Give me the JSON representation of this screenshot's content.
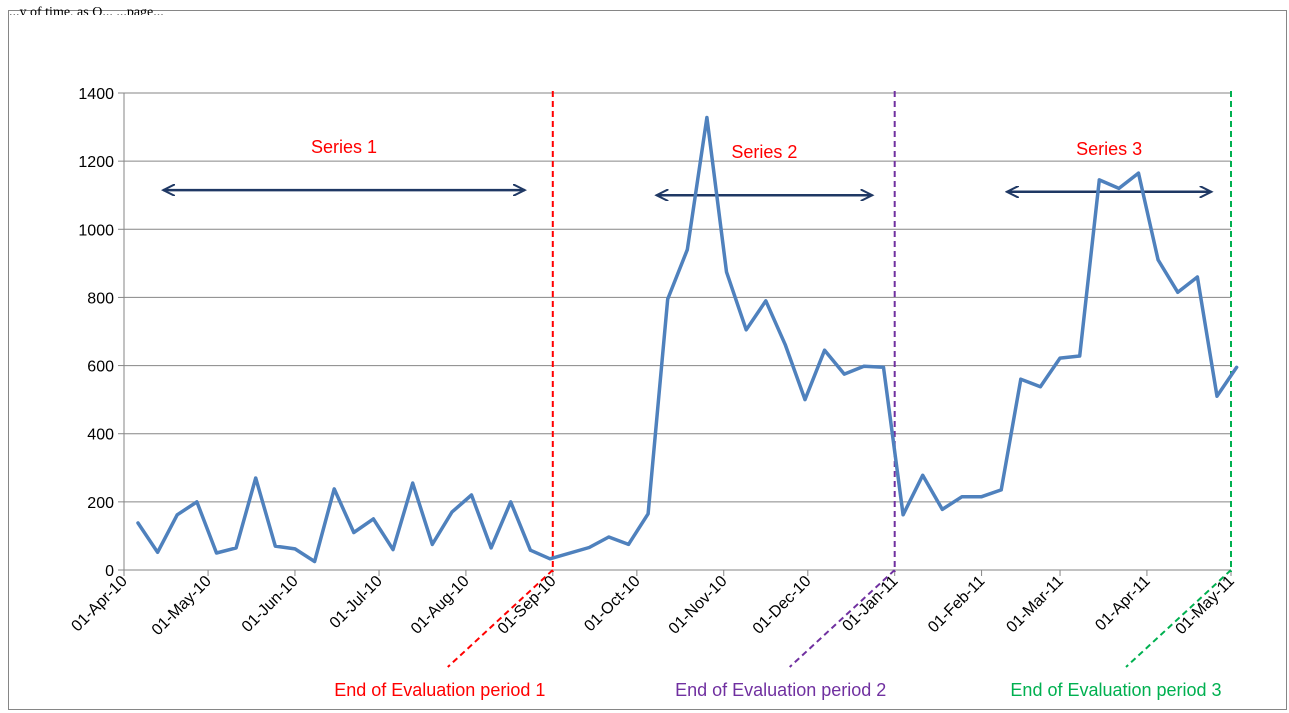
{
  "page": {
    "top_caption": "...y of time, as Q... ...page..."
  },
  "chart_data": {
    "type": "line",
    "ylim": [
      0,
      1400
    ],
    "yticks": [
      0,
      200,
      400,
      600,
      800,
      1000,
      1200,
      1400
    ],
    "xtick_labels": [
      "01-Apr-10",
      "01-May-10",
      "01-Jun-10",
      "01-Jul-10",
      "01-Aug-10",
      "01-Sep-10",
      "01-Oct-10",
      "01-Nov-10",
      "01-Dec-10",
      "01-Jan-11",
      "01-Feb-11",
      "01-Mar-11",
      "01-Apr-11",
      "01-May-11"
    ],
    "xtick_dates": [
      "2010-04-01",
      "2010-05-01",
      "2010-06-01",
      "2010-07-01",
      "2010-08-01",
      "2010-09-01",
      "2010-10-01",
      "2010-11-01",
      "2010-12-01",
      "2011-01-01",
      "2011-02-01",
      "2011-03-01",
      "2011-04-01",
      "2011-05-01"
    ],
    "grid": "horizontal",
    "series": [
      {
        "color": "#4f81bd",
        "points": [
          [
            "2010-04-06",
            138
          ],
          [
            "2010-04-13",
            52
          ],
          [
            "2010-04-20",
            162
          ],
          [
            "2010-04-27",
            200
          ],
          [
            "2010-05-04",
            50
          ],
          [
            "2010-05-11",
            65
          ],
          [
            "2010-05-18",
            270
          ],
          [
            "2010-05-25",
            70
          ],
          [
            "2010-06-01",
            62
          ],
          [
            "2010-06-08",
            25
          ],
          [
            "2010-06-15",
            238
          ],
          [
            "2010-06-22",
            110
          ],
          [
            "2010-06-29",
            150
          ],
          [
            "2010-07-06",
            60
          ],
          [
            "2010-07-13",
            255
          ],
          [
            "2010-07-20",
            75
          ],
          [
            "2010-07-27",
            170
          ],
          [
            "2010-08-03",
            220
          ],
          [
            "2010-08-10",
            65
          ],
          [
            "2010-08-17",
            200
          ],
          [
            "2010-08-24",
            58
          ],
          [
            "2010-08-31",
            33
          ],
          [
            "2010-09-14",
            66
          ],
          [
            "2010-09-21",
            97
          ],
          [
            "2010-09-28",
            75
          ],
          [
            "2010-10-05",
            165
          ],
          [
            "2010-10-12",
            795
          ],
          [
            "2010-10-19",
            940
          ],
          [
            "2010-10-26",
            1328
          ],
          [
            "2010-11-02",
            875
          ],
          [
            "2010-11-09",
            705
          ],
          [
            "2010-11-16",
            790
          ],
          [
            "2010-11-23",
            660
          ],
          [
            "2010-11-30",
            500
          ],
          [
            "2010-12-07",
            645
          ],
          [
            "2010-12-14",
            575
          ],
          [
            "2010-12-21",
            598
          ],
          [
            "2010-12-28",
            595
          ],
          [
            "2011-01-04",
            162
          ],
          [
            "2011-01-11",
            278
          ],
          [
            "2011-01-18",
            178
          ],
          [
            "2011-01-25",
            215
          ],
          [
            "2011-02-01",
            215
          ],
          [
            "2011-02-08",
            235
          ],
          [
            "2011-02-15",
            560
          ],
          [
            "2011-02-22",
            538
          ],
          [
            "2011-03-01",
            622
          ],
          [
            "2011-03-08",
            628
          ],
          [
            "2011-03-15",
            1145
          ],
          [
            "2011-03-22",
            1120
          ],
          [
            "2011-03-29",
            1165
          ],
          [
            "2011-04-05",
            910
          ],
          [
            "2011-04-12",
            815
          ],
          [
            "2011-04-19",
            860
          ],
          [
            "2011-04-26",
            510
          ],
          [
            "2011-05-03",
            595
          ]
        ]
      }
    ],
    "evaluation_periods": [
      {
        "label": "End of Evaluation period 1",
        "date": "2010-09-01",
        "color": "#ff0000"
      },
      {
        "label": "End of Evaluation period 2",
        "date": "2011-01-01",
        "color": "#7030a0"
      },
      {
        "label": "End of Evaluation period 3",
        "date": "2011-05-01",
        "color": "#00b050"
      }
    ],
    "series_annotations": [
      {
        "label": "Series 1",
        "color": "#ff0000",
        "arrow_from": "2010-04-15",
        "arrow_to": "2010-08-22",
        "arrow_value": 1115
      },
      {
        "label": "Series 2",
        "color": "#ff0000",
        "arrow_from": "2010-10-08",
        "arrow_to": "2010-12-24",
        "arrow_value": 1100
      },
      {
        "label": "Series 3",
        "color": "#ff0000",
        "arrow_from": "2011-02-10",
        "arrow_to": "2011-04-24",
        "arrow_value": 1110
      }
    ],
    "arrow_color": "#1f3864"
  }
}
